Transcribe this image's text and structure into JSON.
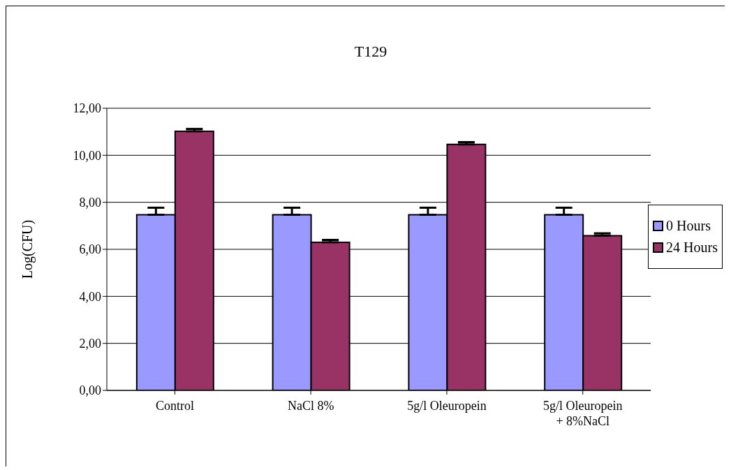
{
  "chart_data": {
    "type": "bar",
    "title": "T129",
    "ylabel": "Log(CFU)",
    "categories": [
      "Control",
      "NaCl 8%",
      "5g/l Oleuropein",
      "5g/l Oleuropein + 8%NaCl"
    ],
    "series": [
      {
        "name": "0 Hours",
        "color": "#9999ff",
        "values": [
          7.47,
          7.47,
          7.47,
          7.47
        ],
        "errors": [
          0.3,
          0.3,
          0.3,
          0.3
        ]
      },
      {
        "name": "24 Hours",
        "color": "#993366",
        "values": [
          11.02,
          6.3,
          10.46,
          6.58
        ],
        "errors": [
          0.1,
          0.1,
          0.1,
          0.1
        ]
      }
    ],
    "ylim": [
      0,
      12
    ],
    "yticks": [
      {
        "value": 0,
        "label": "0,00"
      },
      {
        "value": 2,
        "label": "2,00"
      },
      {
        "value": 4,
        "label": "4,00"
      },
      {
        "value": 6,
        "label": "6,00"
      },
      {
        "value": 8,
        "label": "8,00"
      },
      {
        "value": 10,
        "label": "10,00"
      },
      {
        "value": 12,
        "label": "12,00"
      }
    ],
    "grid": "y",
    "legend": "right"
  }
}
